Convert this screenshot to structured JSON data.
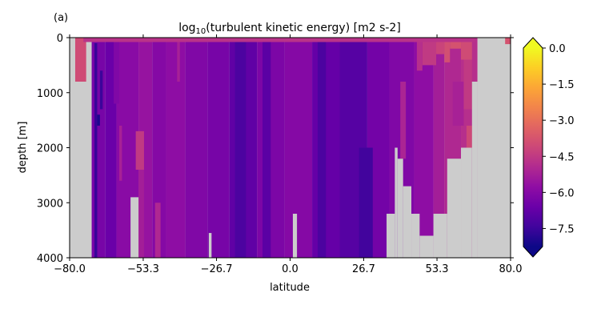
{
  "panel_label": "(a)",
  "chart_data": {
    "type": "heatmap",
    "title_parts": [
      "log",
      "10",
      "(turbulent kinetic energy) [m2 s-2]"
    ],
    "xlabel": "latitude",
    "ylabel": "depth [m]",
    "xlim": [
      -80.0,
      80.0
    ],
    "ylim": [
      4000,
      0
    ],
    "y_inverted": true,
    "x_ticks": [
      -80.0,
      -53.3,
      -26.7,
      0.0,
      26.7,
      53.3,
      80.0
    ],
    "x_tick_labels": [
      "−80.0",
      "−53.3",
      "−26.7",
      "0.0",
      "26.7",
      "53.3",
      "80.0"
    ],
    "y_ticks": [
      0,
      1000,
      2000,
      3000,
      4000
    ],
    "y_tick_labels": [
      "0",
      "1000",
      "2000",
      "3000",
      "4000"
    ],
    "colormap": "plasma",
    "missing_color": "#cccccc",
    "colorbar": {
      "range": [
        -8.25,
        0.0
      ],
      "extend": "both",
      "ticks": [
        0.0,
        -1.5,
        -3.0,
        -4.5,
        -6.0,
        -7.5
      ],
      "tick_labels": [
        "0.0",
        "−1.5",
        "−3.0",
        "−4.5",
        "−6.0",
        "−7.5"
      ]
    },
    "background_fields": [
      {
        "lat": [
          -78,
          -74
        ],
        "depth": [
          0,
          800
        ],
        "value": -4.0
      },
      {
        "lat": [
          -72,
          -67
        ],
        "depth": [
          0,
          4000
        ],
        "value": -6.3
      },
      {
        "lat": [
          -67,
          -63
        ],
        "depth": [
          0,
          4000
        ],
        "value": -6.6
      },
      {
        "lat": [
          -63,
          -55
        ],
        "depth": [
          0,
          4000
        ],
        "value": -5.9
      },
      {
        "lat": [
          -55,
          -50
        ],
        "depth": [
          0,
          4000
        ],
        "value": -5.6
      },
      {
        "lat": [
          -50,
          -45
        ],
        "depth": [
          0,
          4000
        ],
        "value": -6.0
      },
      {
        "lat": [
          -45,
          -38
        ],
        "depth": [
          0,
          4000
        ],
        "value": -5.8
      },
      {
        "lat": [
          -38,
          -30
        ],
        "depth": [
          0,
          4000
        ],
        "value": -6.1
      },
      {
        "lat": [
          -30,
          -22
        ],
        "depth": [
          0,
          4000
        ],
        "value": -6.3
      },
      {
        "lat": [
          -22,
          -12
        ],
        "depth": [
          0,
          4000
        ],
        "value": -6.8
      },
      {
        "lat": [
          -12,
          -2
        ],
        "depth": [
          0,
          4000
        ],
        "value": -6.2
      },
      {
        "lat": [
          -2,
          8
        ],
        "depth": [
          0,
          4000
        ],
        "value": -6.0
      },
      {
        "lat": [
          8,
          18
        ],
        "depth": [
          0,
          4000
        ],
        "value": -6.7
      },
      {
        "lat": [
          18,
          28
        ],
        "depth": [
          0,
          4000
        ],
        "value": -7.0
      },
      {
        "lat": [
          28,
          36
        ],
        "depth": [
          0,
          4000
        ],
        "value": -6.4
      },
      {
        "lat": [
          36,
          45
        ],
        "depth": [
          0,
          4000
        ],
        "value": -6.1
      },
      {
        "lat": [
          45,
          52
        ],
        "depth": [
          0,
          4000
        ],
        "value": -5.8
      },
      {
        "lat": [
          52,
          56
        ],
        "depth": [
          0,
          4000
        ],
        "value": -5.3
      },
      {
        "lat": [
          56,
          62
        ],
        "depth": [
          0,
          4000
        ],
        "value": -5.0
      },
      {
        "lat": [
          62,
          68
        ],
        "depth": [
          0,
          4000
        ],
        "value": -4.8
      }
    ],
    "features": [
      {
        "lat": [
          -71,
          -70
        ],
        "depth": [
          100,
          4000
        ],
        "value": -7.6
      },
      {
        "lat": [
          -69,
          -68
        ],
        "depth": [
          600,
          1300
        ],
        "value": -7.5
      },
      {
        "lat": [
          -70,
          -69
        ],
        "depth": [
          1400,
          1600
        ],
        "value": -8.0
      },
      {
        "lat": [
          -64,
          -62
        ],
        "depth": [
          0,
          1200
        ],
        "value": -6.1
      },
      {
        "lat": [
          -62,
          -61
        ],
        "depth": [
          1600,
          2600
        ],
        "value": -5.2
      },
      {
        "lat": [
          -56,
          -53
        ],
        "depth": [
          1700,
          2400
        ],
        "value": -4.5
      },
      {
        "lat": [
          -55,
          -53
        ],
        "depth": [
          2400,
          4000
        ],
        "value": -5.3
      },
      {
        "lat": [
          -49,
          -47
        ],
        "depth": [
          3000,
          4000
        ],
        "value": -5.0
      },
      {
        "lat": [
          -41,
          -40
        ],
        "depth": [
          0,
          800
        ],
        "value": -5.2
      },
      {
        "lat": [
          -20,
          -16
        ],
        "depth": [
          0,
          4000
        ],
        "value": -7.2
      },
      {
        "lat": [
          -10,
          -7
        ],
        "depth": [
          0,
          4000
        ],
        "value": -6.9
      },
      {
        "lat": [
          10,
          13
        ],
        "depth": [
          0,
          4000
        ],
        "value": -7.2
      },
      {
        "lat": [
          25,
          30
        ],
        "depth": [
          2000,
          4000
        ],
        "value": -7.4
      },
      {
        "lat": [
          40,
          42
        ],
        "depth": [
          800,
          2200
        ],
        "value": -5.1
      },
      {
        "lat": [
          46,
          48
        ],
        "depth": [
          0,
          600
        ],
        "value": -4.8
      },
      {
        "lat": [
          48,
          53
        ],
        "depth": [
          0,
          500
        ],
        "value": -4.5
      },
      {
        "lat": [
          53,
          56
        ],
        "depth": [
          0,
          300
        ],
        "value": -4.2
      },
      {
        "lat": [
          56,
          58
        ],
        "depth": [
          0,
          450
        ],
        "value": -3.9
      },
      {
        "lat": [
          58,
          62
        ],
        "depth": [
          0,
          200
        ],
        "value": -3.8
      },
      {
        "lat": [
          62,
          66
        ],
        "depth": [
          0,
          400
        ],
        "value": -4.0
      },
      {
        "lat": [
          63,
          66
        ],
        "depth": [
          400,
          1300
        ],
        "value": -4.5
      },
      {
        "lat": [
          59,
          63
        ],
        "depth": [
          800,
          1600
        ],
        "value": -5.2
      },
      {
        "lat": [
          64,
          66
        ],
        "depth": [
          1600,
          2000
        ],
        "value": -4.1
      },
      {
        "lat": [
          -75,
          67
        ],
        "depth": [
          0,
          80
        ],
        "value": -4.7
      },
      {
        "lat": [
          78,
          80
        ],
        "depth": [
          0,
          120
        ],
        "value": -3.8
      }
    ],
    "land_mask": [
      {
        "lat": [
          -80,
          -78
        ],
        "depth": [
          0,
          4000
        ]
      },
      {
        "lat": [
          -78,
          -74
        ],
        "depth": [
          800,
          4000
        ]
      },
      {
        "lat": [
          -57.9,
          -55
        ],
        "depth": [
          2900,
          4000
        ]
      },
      {
        "lat": [
          -29.5,
          -28.5
        ],
        "depth": [
          3550,
          4000
        ]
      },
      {
        "lat": [
          1,
          2.5
        ],
        "depth": [
          3200,
          4000
        ]
      },
      {
        "lat": [
          35,
          38
        ],
        "depth": [
          3200,
          4000
        ]
      },
      {
        "lat": [
          38,
          39
        ],
        "depth": [
          2000,
          4000
        ]
      },
      {
        "lat": [
          39,
          41
        ],
        "depth": [
          2200,
          4000
        ]
      },
      {
        "lat": [
          41,
          44
        ],
        "depth": [
          2700,
          4000
        ]
      },
      {
        "lat": [
          44,
          47
        ],
        "depth": [
          3200,
          4000
        ]
      },
      {
        "lat": [
          47,
          52
        ],
        "depth": [
          3600,
          4000
        ]
      },
      {
        "lat": [
          52,
          57
        ],
        "depth": [
          3200,
          4000
        ]
      },
      {
        "lat": [
          57,
          62
        ],
        "depth": [
          2200,
          4000
        ]
      },
      {
        "lat": [
          62,
          66
        ],
        "depth": [
          2000,
          4000
        ]
      },
      {
        "lat": [
          66,
          68
        ],
        "depth": [
          800,
          4000
        ]
      },
      {
        "lat": [
          68,
          78
        ],
        "depth": [
          0,
          4000
        ]
      },
      {
        "lat": [
          78,
          80
        ],
        "depth": [
          120,
          4000
        ]
      }
    ]
  }
}
